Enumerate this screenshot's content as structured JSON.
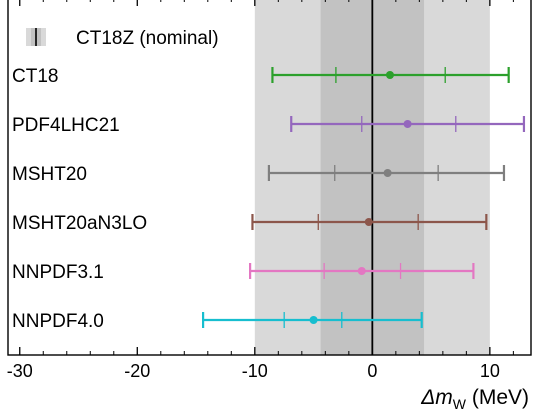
{
  "chart_data": {
    "type": "forest",
    "title": "",
    "xlabel": "Δm",
    "xlabel_subscript": "W",
    "xlabel_unit": "(MeV)",
    "xlim": [
      -31,
      13.5
    ],
    "xticks": [
      -30,
      -20,
      -10,
      0,
      10
    ],
    "grid": false,
    "bands": {
      "outer": [
        -10.0,
        10.0
      ],
      "inner": [
        -4.4,
        4.4
      ],
      "outer_color": "#d9d9d9",
      "inner_color": "#c2c2c2",
      "center_line": 0
    },
    "legend": {
      "label": "CT18Z (nominal)",
      "position": "top-left"
    },
    "series": [
      {
        "name": "CT18",
        "central": 1.5,
        "inner": [
          -3.1,
          6.2
        ],
        "outer": [
          -8.5,
          11.6
        ],
        "color": "#2ca02c"
      },
      {
        "name": "PDF4LHC21",
        "central": 3.0,
        "inner": [
          -0.9,
          7.1
        ],
        "outer": [
          -6.9,
          12.9
        ],
        "color": "#9467bd"
      },
      {
        "name": "MSHT20",
        "central": 1.3,
        "inner": [
          -3.2,
          5.6
        ],
        "outer": [
          -8.8,
          11.2
        ],
        "color": "#7f7f7f"
      },
      {
        "name": "MSHT20aN3LO",
        "central": -0.3,
        "inner": [
          -4.6,
          3.9
        ],
        "outer": [
          -10.2,
          9.7
        ],
        "color": "#8c564b"
      },
      {
        "name": "NNPDF3.1",
        "central": -0.9,
        "inner": [
          -4.1,
          2.4
        ],
        "outer": [
          -10.4,
          8.6
        ],
        "color": "#e377c2"
      },
      {
        "name": "NNPDF4.0",
        "central": -5.0,
        "inner": [
          -7.5,
          -2.6
        ],
        "outer": [
          -14.4,
          4.2
        ],
        "color": "#17becf"
      }
    ]
  }
}
